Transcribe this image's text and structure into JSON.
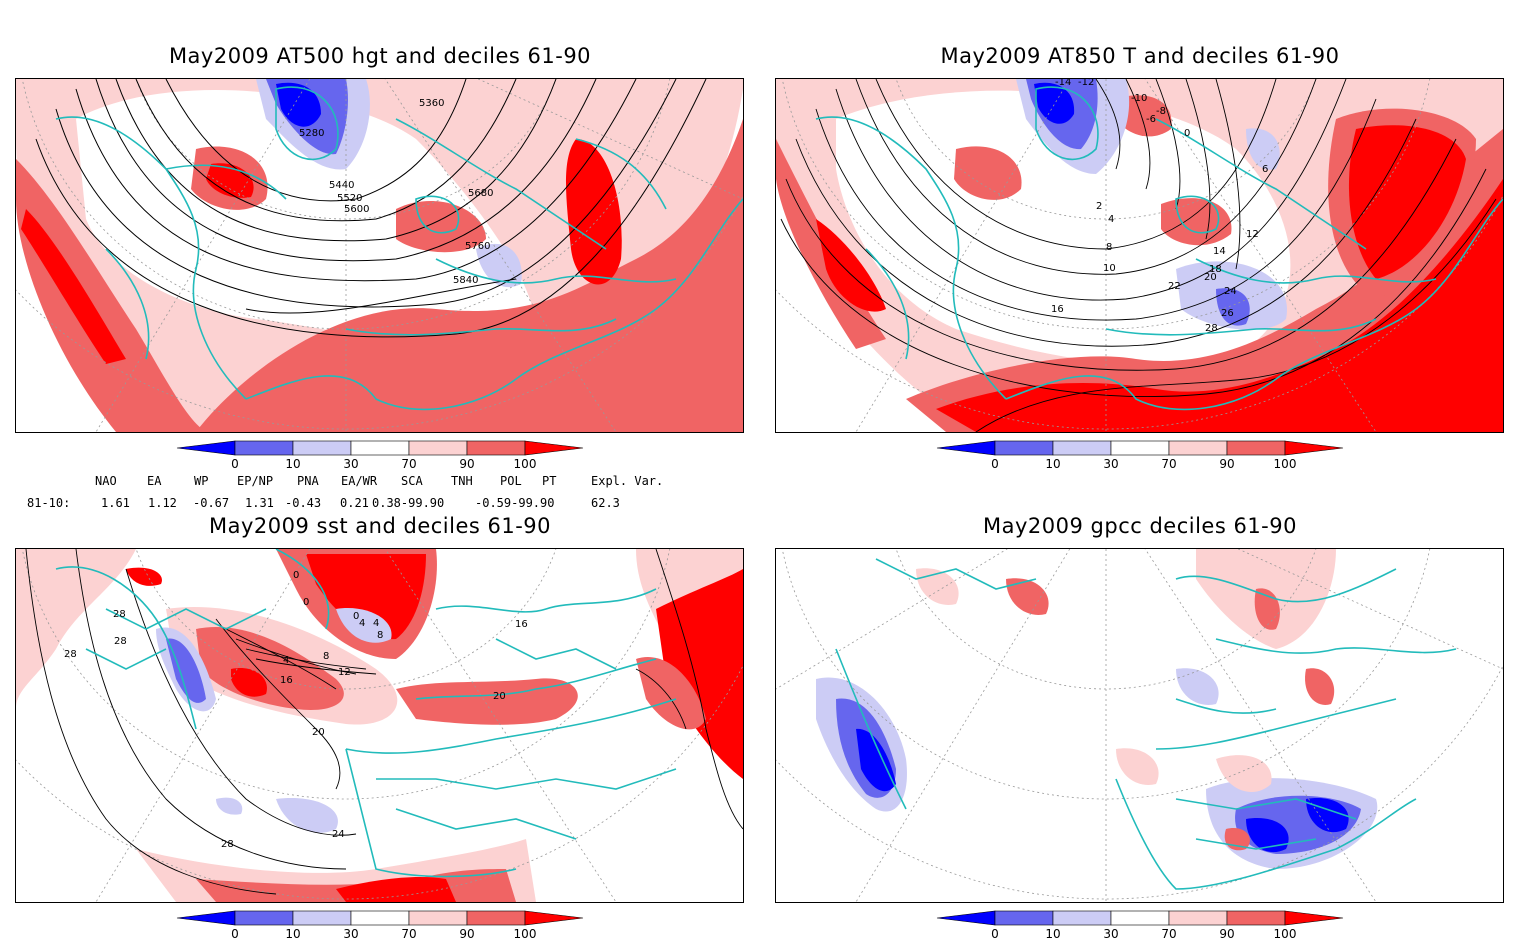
{
  "panels": [
    {
      "id": "at500",
      "title": "May2009 AT500 hgt and deciles 61-90",
      "contour_labels": [
        "5280",
        "5360",
        "5440",
        "5520",
        "5600",
        "5680",
        "5760",
        "5840"
      ]
    },
    {
      "id": "at850",
      "title": "May2009 AT850 T and deciles 61-90",
      "contour_labels": [
        "-14",
        "-12",
        "-10",
        "-8",
        "-6",
        "0",
        "2",
        "4",
        "6",
        "8",
        "10",
        "12",
        "14",
        "16",
        "18",
        "20",
        "22",
        "24",
        "26",
        "28"
      ]
    },
    {
      "id": "sst",
      "title": "May2009 sst and deciles 61-90",
      "contour_labels": [
        "0",
        "4",
        "8",
        "12",
        "16",
        "20",
        "24",
        "28"
      ]
    },
    {
      "id": "gpcc",
      "title": "May2009 gpcc deciles 61-90",
      "contour_labels": []
    }
  ],
  "colorbar": {
    "ticks": [
      "0",
      "10",
      "30",
      "70",
      "90",
      "100"
    ],
    "colors": [
      "#0000ff",
      "#6666ee",
      "#ccccf5",
      "#ffffff",
      "#fcd2d2",
      "#f06464",
      "#ff0000"
    ]
  },
  "indices": {
    "headers": [
      "NAO",
      "EA",
      "WP",
      "EP/NP",
      "PNA",
      "EA/WR",
      "SCA",
      "TNH",
      "POL",
      "PT",
      "Expl. Var."
    ],
    "row_label": "81-10:",
    "values": [
      "1.61",
      "1.12",
      "-0.67",
      "1.31",
      "-0.43",
      "0.21",
      "0.38-99.90",
      "-0.59-99.90",
      "62.3"
    ]
  },
  "colors": {
    "coast": "#22bbbb",
    "grid": "#999999",
    "contour": "#000000",
    "deep_red": "#ff0000",
    "mid_red": "#f06464",
    "light_red": "#fcd2d2",
    "light_blue": "#ccccf5",
    "mid_blue": "#6666ee",
    "deep_blue": "#0000ff"
  }
}
